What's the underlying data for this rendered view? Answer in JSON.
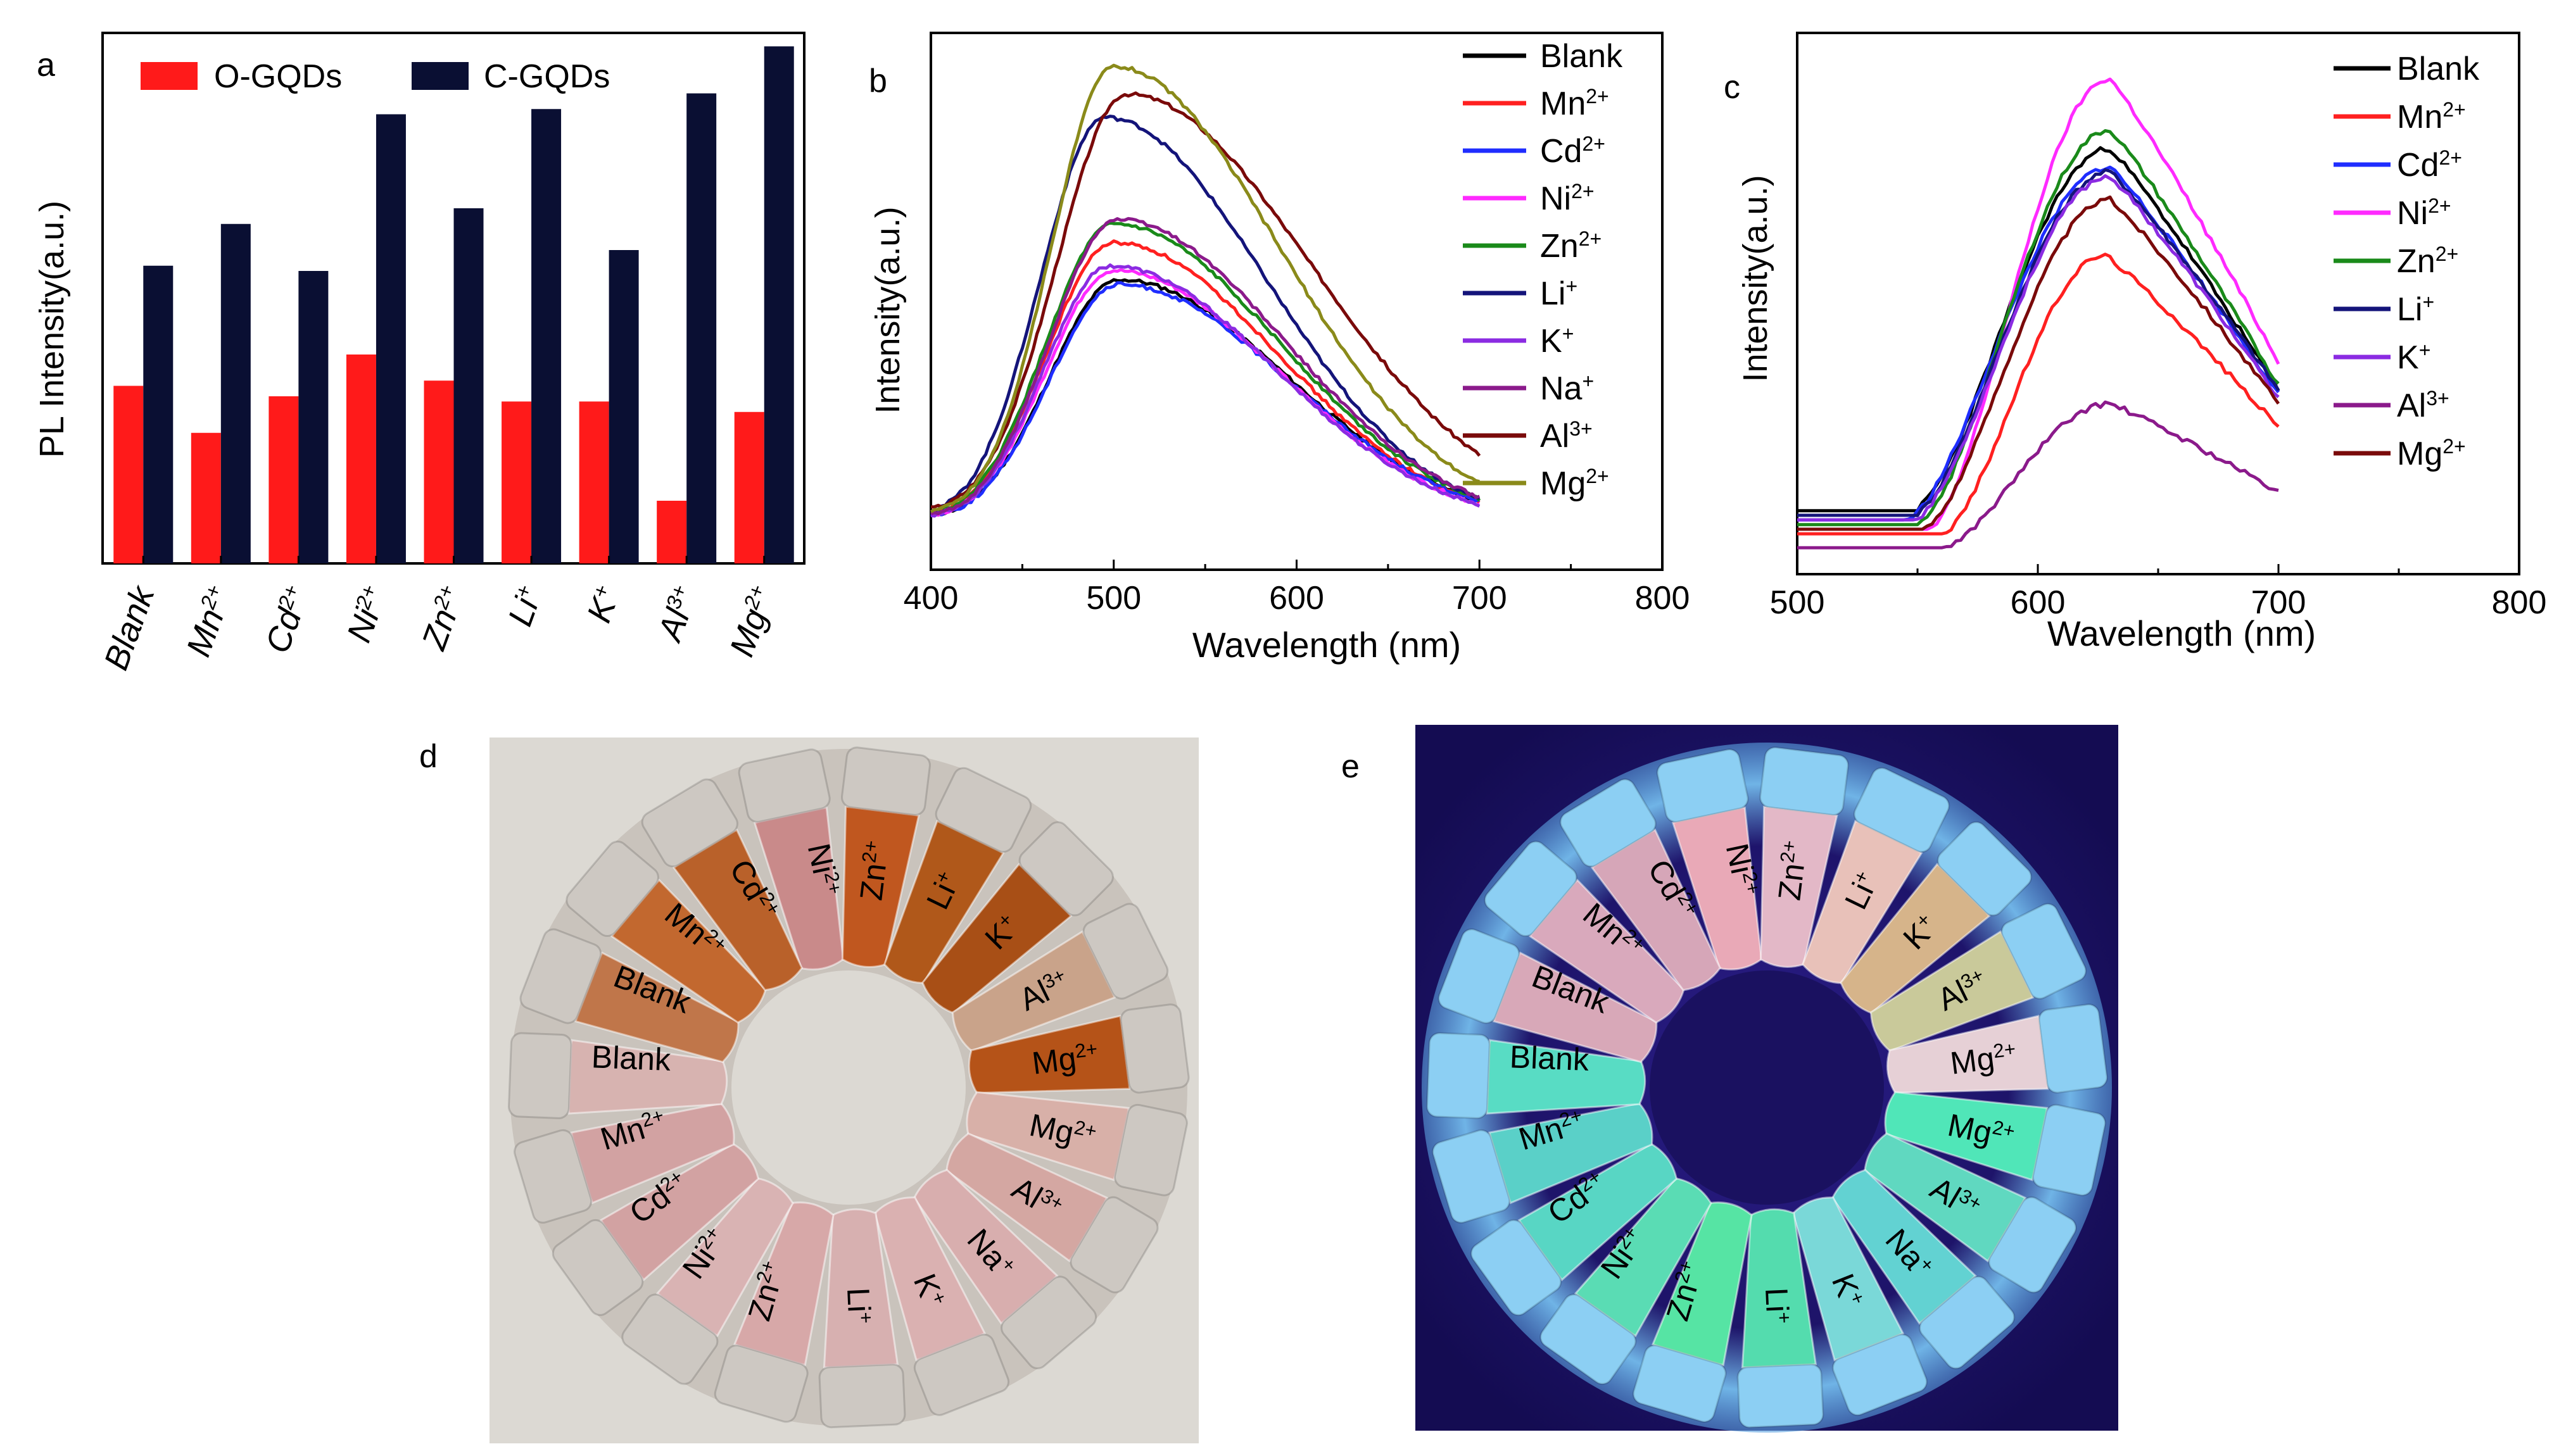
{
  "colors": {
    "o_gqds": "#ff1a1a",
    "c_gqds": "#0a0f33"
  },
  "panel_labels": {
    "a": "a",
    "b": "b",
    "c": "c",
    "d": "d",
    "e": "e"
  },
  "chart_data": [
    {
      "id": "a",
      "type": "bar",
      "title": "",
      "ylabel": "PL Intensity(a.u.)",
      "xlabel": "",
      "categories": [
        "Blank",
        "Mn",
        "Cd",
        "Ni",
        "Zn",
        "Li",
        "K",
        "Al",
        "Mg"
      ],
      "category_superscripts": [
        "",
        "2+",
        "2+",
        "2+",
        "2+",
        "+",
        "+",
        "3+",
        "2+"
      ],
      "ylim": [
        0,
        100
      ],
      "legend": [
        {
          "name": "O-GQDs",
          "color": "#ff1a1a"
        },
        {
          "name": "C-GQDs",
          "color": "#0a0f33"
        }
      ],
      "series": [
        {
          "name": "O-GQDs",
          "color": "#ff1a1a",
          "values": [
            34,
            25,
            32,
            40,
            35,
            31,
            31,
            12,
            29
          ]
        },
        {
          "name": "C-GQDs",
          "color": "#0a0f33",
          "values": [
            57,
            65,
            56,
            86,
            68,
            87,
            60,
            90,
            99
          ]
        }
      ]
    },
    {
      "id": "b",
      "type": "line",
      "xlabel": "Wavelength (nm)",
      "ylabel": "Intensity(a.u.)",
      "xlim": [
        400,
        800
      ],
      "ylim": [
        0,
        1
      ],
      "xticks": [
        400,
        500,
        600,
        700,
        800
      ],
      "x_range": [
        400,
        700
      ],
      "series": [
        {
          "name": "Blank",
          "sup": "",
          "color": "#000000",
          "peak_x": 503,
          "peak": 0.57,
          "baseline": 0.04,
          "sl": 38,
          "sr": 92
        },
        {
          "name": "Mn",
          "sup": "2+",
          "color": "#ff2020",
          "peak_x": 500,
          "peak": 0.65,
          "baseline": 0.04,
          "sl": 37,
          "sr": 90
        },
        {
          "name": "Cd",
          "sup": "2+",
          "color": "#1f2dff",
          "peak_x": 503,
          "peak": 0.56,
          "baseline": 0.04,
          "sl": 38,
          "sr": 92
        },
        {
          "name": "Ni",
          "sup": "2+",
          "color": "#ff2aff",
          "peak_x": 500,
          "peak": 0.59,
          "baseline": 0.04,
          "sl": 37,
          "sr": 90
        },
        {
          "name": "Zn",
          "sup": "2+",
          "color": "#1a8a1a",
          "peak_x": 500,
          "peak": 0.69,
          "baseline": 0.04,
          "sl": 37,
          "sr": 91
        },
        {
          "name": "Li",
          "sup": "+",
          "color": "#14147a",
          "peak_x": 495,
          "peak": 0.92,
          "baseline": 0.04,
          "sl": 35,
          "sr": 88
        },
        {
          "name": "K",
          "sup": "+",
          "color": "#8b2be2",
          "peak_x": 498,
          "peak": 0.6,
          "baseline": 0.04,
          "sl": 36,
          "sr": 90
        },
        {
          "name": "Na",
          "sup": "+",
          "color": "#8b1a8b",
          "peak_x": 502,
          "peak": 0.7,
          "baseline": 0.04,
          "sl": 37,
          "sr": 91
        },
        {
          "name": "Al",
          "sup": "3+",
          "color": "#7a0a0a",
          "peak_x": 507,
          "peak": 0.97,
          "baseline": 0.05,
          "sl": 38,
          "sr": 100
        },
        {
          "name": "Mg",
          "sup": "2+",
          "color": "#8a8a1a",
          "peak_x": 500,
          "peak": 1.03,
          "baseline": 0.05,
          "sl": 34,
          "sr": 90
        }
      ]
    },
    {
      "id": "c",
      "type": "line",
      "xlabel": "Wavelength (nm)",
      "ylabel": "Intensity(a.u.)",
      "xlim": [
        500,
        800
      ],
      "ylim": [
        0,
        1
      ],
      "xticks": [
        500,
        600,
        700,
        800
      ],
      "x_range": [
        500,
        700
      ],
      "series": [
        {
          "name": "Blank",
          "sup": "",
          "color": "#000000",
          "peak_x": 630,
          "peak": 0.88,
          "baseline": 0.1,
          "end": 0.36,
          "start_end": 548
        },
        {
          "name": "Mn",
          "sup": "2+",
          "color": "#ff2020",
          "peak_x": 628,
          "peak": 0.65,
          "baseline": 0.05,
          "end": 0.28,
          "start_end": 560
        },
        {
          "name": "Cd",
          "sup": "2+",
          "color": "#1f2dff",
          "peak_x": 630,
          "peak": 0.84,
          "baseline": 0.08,
          "end": 0.35,
          "start_end": 545
        },
        {
          "name": "Ni",
          "sup": "2+",
          "color": "#ff2aff",
          "peak_x": 630,
          "peak": 1.03,
          "baseline": 0.06,
          "end": 0.42,
          "start_end": 555
        },
        {
          "name": "Zn",
          "sup": "2+",
          "color": "#1a8a1a",
          "peak_x": 630,
          "peak": 0.92,
          "baseline": 0.07,
          "end": 0.37,
          "start_end": 550
        },
        {
          "name": "Li",
          "sup": "+",
          "color": "#14147a",
          "peak_x": 630,
          "peak": 0.83,
          "baseline": 0.09,
          "end": 0.36,
          "start_end": 548
        },
        {
          "name": "K",
          "sup": "+",
          "color": "#8b2be2",
          "peak_x": 630,
          "peak": 0.82,
          "baseline": 0.08,
          "end": 0.34,
          "start_end": 548
        },
        {
          "name": "Al",
          "sup": "3+",
          "color": "#8b1a8b",
          "peak_x": 630,
          "peak": 0.33,
          "baseline": 0.02,
          "end": 0.14,
          "start_end": 560
        },
        {
          "name": "Mg",
          "sup": "2+",
          "color": "#7a0a0a",
          "peak_x": 630,
          "peak": 0.77,
          "baseline": 0.06,
          "end": 0.33,
          "start_end": 552
        }
      ]
    }
  ],
  "photo_d": {
    "tubes": [
      {
        "label": "Ni",
        "sup": "2+"
      },
      {
        "label": "Zn",
        "sup": "2+"
      },
      {
        "label": "Li",
        "sup": "+"
      },
      {
        "label": "K",
        "sup": "+"
      },
      {
        "label": "Al",
        "sup": "3+"
      },
      {
        "label": "Mg",
        "sup": "2+"
      },
      {
        "label": "Mg",
        "sup": "2+"
      },
      {
        "label": "Al",
        "sup": "3+"
      },
      {
        "label": "Na",
        "sup": "+"
      },
      {
        "label": "K",
        "sup": "+"
      },
      {
        "label": "Li",
        "sup": "+"
      },
      {
        "label": "Zn",
        "sup": "2+"
      },
      {
        "label": "Ni",
        "sup": "2+"
      },
      {
        "label": "Cd",
        "sup": "2+"
      },
      {
        "label": "Mn",
        "sup": "2+"
      },
      {
        "label": "Blank",
        "sup": ""
      },
      {
        "label": "Blank",
        "sup": ""
      },
      {
        "label": "Mn",
        "sup": "2+"
      },
      {
        "label": "Cd",
        "sup": "2+"
      }
    ],
    "tube_colors": [
      "#c98a8a",
      "#c0571f",
      "#b0581a",
      "#a84f16",
      "#c9a38a",
      "#b55318",
      "#d8b0a8",
      "#d4a7a2",
      "#d8aeae",
      "#dab1b1",
      "#d7b0b0",
      "#d7a8a8",
      "#d9b3b3",
      "#d2a2a2",
      "#d2a2a2",
      "#d7b3b0",
      "#c0764a",
      "#c2682f",
      "#b9612a"
    ]
  },
  "photo_e": {
    "tubes": [
      {
        "label": "Ni",
        "sup": "2+"
      },
      {
        "label": "Zn",
        "sup": "2+"
      },
      {
        "label": "Li",
        "sup": "+"
      },
      {
        "label": "K",
        "sup": "+"
      },
      {
        "label": "Al",
        "sup": "3+"
      },
      {
        "label": "Mg",
        "sup": "2+"
      },
      {
        "label": "Mg",
        "sup": "2+"
      },
      {
        "label": "Al",
        "sup": "3+"
      },
      {
        "label": "Na",
        "sup": "+"
      },
      {
        "label": "K",
        "sup": "+"
      },
      {
        "label": "Li",
        "sup": "+"
      },
      {
        "label": "Zn",
        "sup": "2+"
      },
      {
        "label": "Ni",
        "sup": "2+"
      },
      {
        "label": "Cd",
        "sup": "2+"
      },
      {
        "label": "Mn",
        "sup": "2+"
      },
      {
        "label": "Blank",
        "sup": ""
      },
      {
        "label": "Blank",
        "sup": ""
      },
      {
        "label": "Mn",
        "sup": "2+"
      },
      {
        "label": "Cd",
        "sup": "2+"
      }
    ],
    "tube_colors": [
      "#e9a9b7",
      "#e3b8c7",
      "#e8c1b9",
      "#d6b48a",
      "#c9c99a",
      "#e6d0d6",
      "#50e6b8",
      "#60d8c0",
      "#62d2d2",
      "#7ad8d8",
      "#54dcae",
      "#56e4a4",
      "#5adcb4",
      "#58d6c4",
      "#5ad0c8",
      "#58dcc4",
      "#d8a8b8",
      "#d9a9bc",
      "#d6a6b8"
    ]
  }
}
